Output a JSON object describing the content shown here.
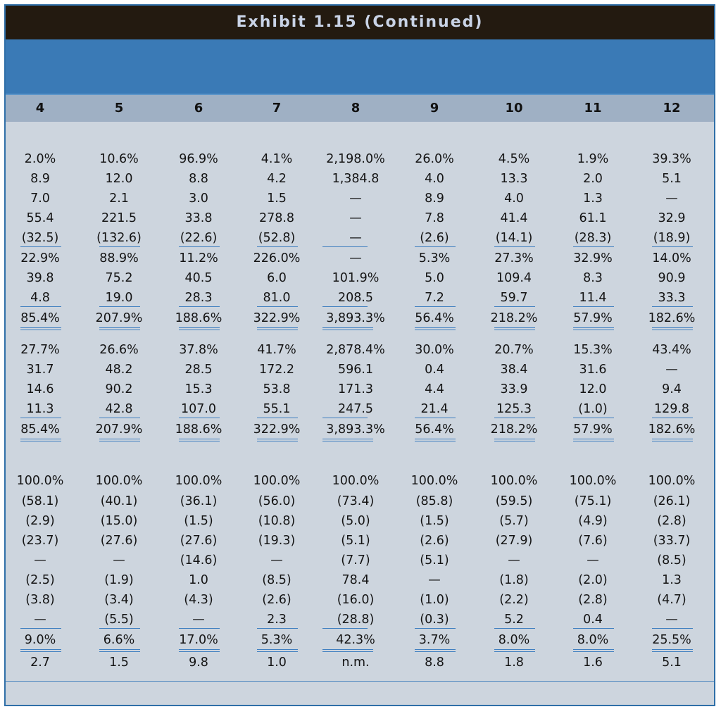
{
  "exhibit": {
    "title": "Exhibit 1.15 (Continued)"
  },
  "table": {
    "column_headers": [
      "4",
      "5",
      "6",
      "7",
      "8",
      "9",
      "10",
      "11",
      "12"
    ],
    "columns": [
      [
        "2.0%",
        "8.9",
        "7.0",
        "55.4",
        "(32.5)",
        "22.9%",
        "39.8",
        "4.8",
        "85.4%",
        "27.7%",
        "31.7",
        "14.6",
        "11.3",
        "85.4%",
        "100.0%",
        "(58.1)",
        "(2.9)",
        "(23.7)",
        "—",
        "(2.5)",
        "(3.8)",
        "—",
        "9.0%",
        "2.7"
      ],
      [
        "10.6%",
        "12.0",
        "2.1",
        "221.5",
        "(132.6)",
        "88.9%",
        "75.2",
        "19.0",
        "207.9%",
        "26.6%",
        "48.2",
        "90.2",
        "42.8",
        "207.9%",
        "100.0%",
        "(40.1)",
        "(15.0)",
        "(27.6)",
        "—",
        "(1.9)",
        "(3.4)",
        "(5.5)",
        "6.6%",
        "1.5"
      ],
      [
        "96.9%",
        "8.8",
        "3.0",
        "33.8",
        "(22.6)",
        "11.2%",
        "40.5",
        "28.3",
        "188.6%",
        "37.8%",
        "28.5",
        "15.3",
        "107.0",
        "188.6%",
        "100.0%",
        "(36.1)",
        "(1.5)",
        "(27.6)",
        "(14.6)",
        "1.0",
        "(4.3)",
        "—",
        "17.0%",
        "9.8"
      ],
      [
        "4.1%",
        "4.2",
        "1.5",
        "278.8",
        "(52.8)",
        "226.0%",
        "6.0",
        "81.0",
        "322.9%",
        "41.7%",
        "172.2",
        "53.8",
        "55.1",
        "322.9%",
        "100.0%",
        "(56.0)",
        "(10.8)",
        "(19.3)",
        "—",
        "(8.5)",
        "(2.6)",
        "2.3",
        "5.3%",
        "1.0"
      ],
      [
        "2,198.0%",
        "1,384.8",
        "—",
        "—",
        "—",
        "—",
        "101.9%",
        "208.5",
        "3,893.3%",
        "2,878.4%",
        "596.1",
        "171.3",
        "247.5",
        "3,893.3%",
        "100.0%",
        "(73.4)",
        "(5.0)",
        "(5.1)",
        "(7.7)",
        "78.4",
        "(16.0)",
        "(28.8)",
        "42.3%",
        "n.m."
      ],
      [
        "26.0%",
        "4.0",
        "8.9",
        "7.8",
        "(2.6)",
        "5.3%",
        "5.0",
        "7.2",
        "56.4%",
        "30.0%",
        "0.4",
        "4.4",
        "21.4",
        "56.4%",
        "100.0%",
        "(85.8)",
        "(1.5)",
        "(2.6)",
        "(5.1)",
        "—",
        "(1.0)",
        "(0.3)",
        "3.7%",
        "8.8"
      ],
      [
        "4.5%",
        "13.3",
        "4.0",
        "41.4",
        "(14.1)",
        "27.3%",
        "109.4",
        "59.7",
        "218.2%",
        "20.7%",
        "38.4",
        "33.9",
        "125.3",
        "218.2%",
        "100.0%",
        "(59.5)",
        "(5.7)",
        "(27.9)",
        "—",
        "(1.8)",
        "(2.2)",
        "5.2",
        "8.0%",
        "1.8"
      ],
      [
        "1.9%",
        "2.0",
        "1.3",
        "61.1",
        "(28.3)",
        "32.9%",
        "8.3",
        "11.4",
        "57.9%",
        "15.3%",
        "31.6",
        "12.0",
        "(1.0)",
        "57.9%",
        "100.0%",
        "(75.1)",
        "(4.9)",
        "(7.6)",
        "—",
        "(2.0)",
        "(2.8)",
        "0.4",
        "8.0%",
        "1.6"
      ],
      [
        "39.3%",
        "5.1",
        "—",
        "32.9",
        "(18.9)",
        "14.0%",
        "90.9",
        "33.3",
        "182.6%",
        "43.4%",
        "—",
        "9.4",
        "129.8",
        "182.6%",
        "100.0%",
        "(26.1)",
        "(2.8)",
        "(33.7)",
        "(8.5)",
        "1.3",
        "(4.7)",
        "—",
        "25.5%",
        "5.1"
      ]
    ]
  }
}
